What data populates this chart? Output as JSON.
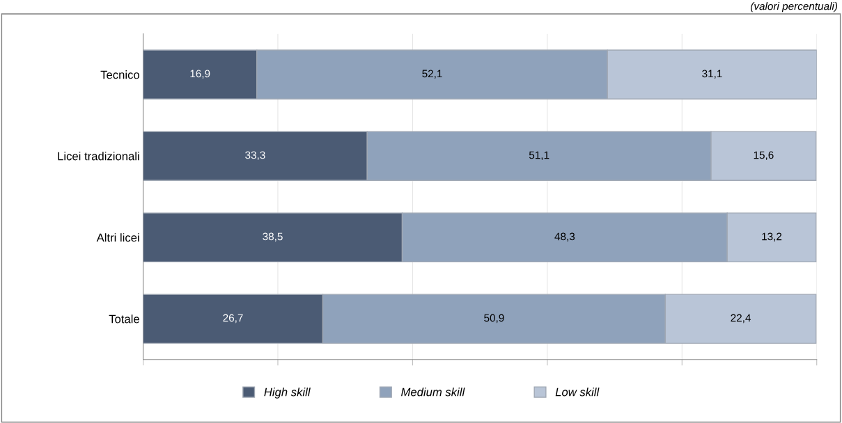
{
  "chart_data": {
    "type": "bar",
    "orientation": "horizontal",
    "stacked": true,
    "annotations": [
      "(valori percentuali)"
    ],
    "categories": [
      "Tecnico",
      "Licei tradizionali",
      "Altri licei",
      "Totale"
    ],
    "series": [
      {
        "name": "High skill",
        "color": "#4b5b74",
        "values": [
          16.9,
          33.3,
          38.5,
          26.7
        ],
        "value_labels": [
          "16,9",
          "33,3",
          "38,5",
          "26,7"
        ]
      },
      {
        "name": "Medium skill",
        "color": "#8fa2bb",
        "values": [
          52.1,
          51.1,
          48.3,
          50.9
        ],
        "value_labels": [
          "52,1",
          "51,1",
          "48,3",
          "50,9"
        ]
      },
      {
        "name": "Low skill",
        "color": "#b9c5d7",
        "values": [
          31.1,
          15.6,
          13.2,
          22.4
        ],
        "value_labels": [
          "31,1",
          "15,6",
          "13,2",
          "22,4"
        ]
      }
    ],
    "tick_labels": "y",
    "grid": "x",
    "legend": "bottom"
  }
}
